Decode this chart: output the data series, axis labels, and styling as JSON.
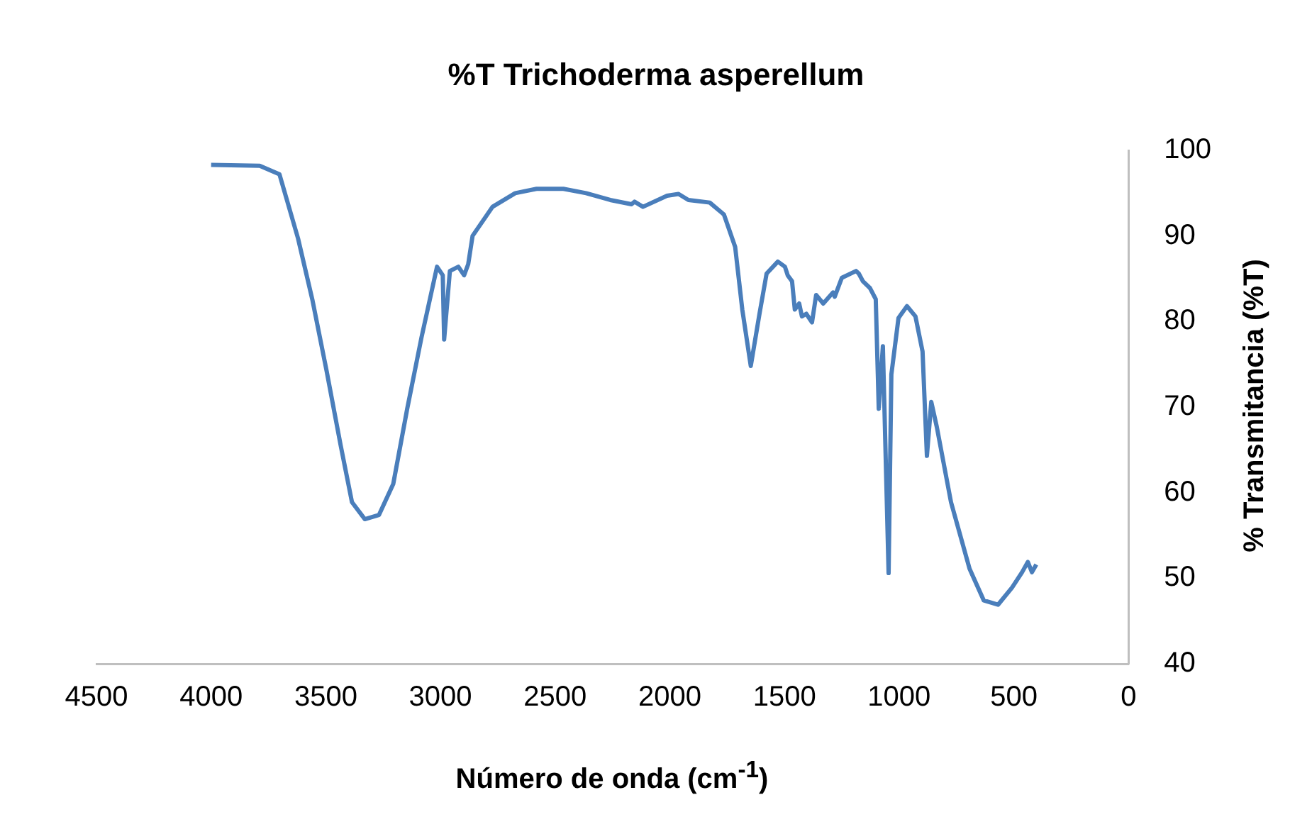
{
  "chart_data": {
    "type": "line",
    "title": "%T Trichoderma asperellum",
    "xlabel": "Número de onda (cm$^{-1}$)",
    "ylabel": "% Transmitancia (%T)",
    "xlim": [
      4500,
      0
    ],
    "xticks": [
      4500,
      4000,
      3500,
      3000,
      2500,
      2000,
      1500,
      1000,
      500,
      0
    ],
    "ylim": [
      40,
      100
    ],
    "yticks": [
      40,
      50,
      60,
      70,
      80,
      90,
      100
    ],
    "grid": false,
    "series": [
      {
        "color": "#4a7ebb",
        "x": [
          4000,
          3788,
          3702,
          3621,
          3559,
          3497,
          3435,
          3386,
          3330,
          3268,
          3206,
          3145,
          3083,
          3015,
          2990,
          2984,
          2959,
          2922,
          2897,
          2879,
          2860,
          2773,
          2674,
          2581,
          2464,
          2365,
          2260,
          2167,
          2154,
          2117,
          2012,
          1962,
          1919,
          1826,
          1764,
          1715,
          1684,
          1647,
          1609,
          1578,
          1529,
          1498,
          1486,
          1467,
          1455,
          1436,
          1424,
          1405,
          1380,
          1362,
          1331,
          1288,
          1281,
          1250,
          1188,
          1176,
          1158,
          1127,
          1102,
          1089,
          1071,
          1046,
          1034,
          1003,
          966,
          929,
          898,
          879,
          860,
          836,
          774,
          693,
          631,
          569,
          508,
          464,
          439,
          421,
          402
        ],
        "values": [
          98.3,
          98.2,
          97.2,
          89.7,
          82.6,
          74.3,
          65.5,
          58.9,
          56.9,
          57.4,
          61.0,
          69.8,
          78.1,
          86.4,
          85.4,
          77.9,
          85.9,
          86.4,
          85.4,
          86.7,
          90.0,
          93.4,
          95.0,
          95.5,
          95.5,
          95.0,
          94.2,
          93.7,
          94.0,
          93.4,
          94.7,
          94.9,
          94.2,
          93.9,
          92.5,
          88.7,
          81.4,
          74.8,
          80.9,
          85.6,
          87.0,
          86.4,
          85.4,
          84.7,
          81.4,
          82.1,
          80.6,
          80.9,
          79.9,
          83.1,
          82.1,
          83.4,
          82.9,
          85.1,
          85.9,
          85.6,
          84.7,
          83.9,
          82.6,
          69.8,
          77.1,
          50.6,
          73.8,
          80.4,
          81.8,
          80.6,
          76.5,
          64.3,
          70.6,
          67.7,
          58.9,
          51.1,
          47.4,
          46.9,
          48.9,
          50.7,
          51.9,
          50.7,
          51.6
        ]
      }
    ]
  }
}
